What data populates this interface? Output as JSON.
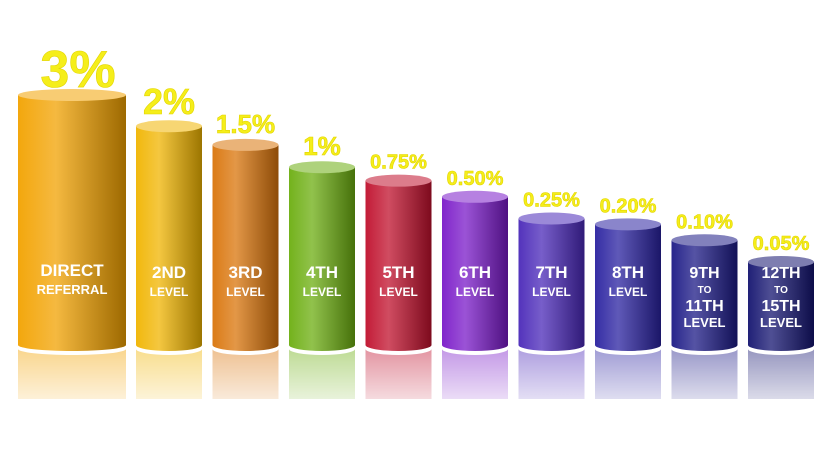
{
  "chart_data": {
    "type": "bar",
    "title": "",
    "xlabel": "",
    "ylabel": "",
    "ylim": [
      0,
      3
    ],
    "grid": false,
    "legend": "none",
    "categories": [
      [
        "DIRECT",
        "REFERRAL"
      ],
      [
        "2ND",
        "LEVEL"
      ],
      [
        "3RD",
        "LEVEL"
      ],
      [
        "4TH",
        "LEVEL"
      ],
      [
        "5TH",
        "LEVEL"
      ],
      [
        "6TH",
        "LEVEL"
      ],
      [
        "7TH",
        "LEVEL"
      ],
      [
        "8TH",
        "LEVEL"
      ],
      [
        "9TH",
        "TO",
        "11TH",
        "LEVEL"
      ],
      [
        "12TH",
        "TO",
        "15TH",
        "LEVEL"
      ]
    ],
    "values": [
      3,
      2,
      1.5,
      1,
      0.75,
      0.5,
      0.25,
      0.2,
      0.1,
      0.05
    ],
    "value_labels": [
      "3%",
      "2%",
      "1.5%",
      "1%",
      "0.75%",
      "0.50%",
      "0.25%",
      "0.20%",
      "0.10%",
      "0.05%"
    ],
    "colors": [
      "#f2a200",
      "#f0b400",
      "#d9740a",
      "#6cae10",
      "#c0102c",
      "#7a1ac8",
      "#4a28b8",
      "#2a22a0",
      "#1c1a86",
      "#141470"
    ],
    "label_color": "#ffffff",
    "value_label_color": "#f5ee1a"
  }
}
